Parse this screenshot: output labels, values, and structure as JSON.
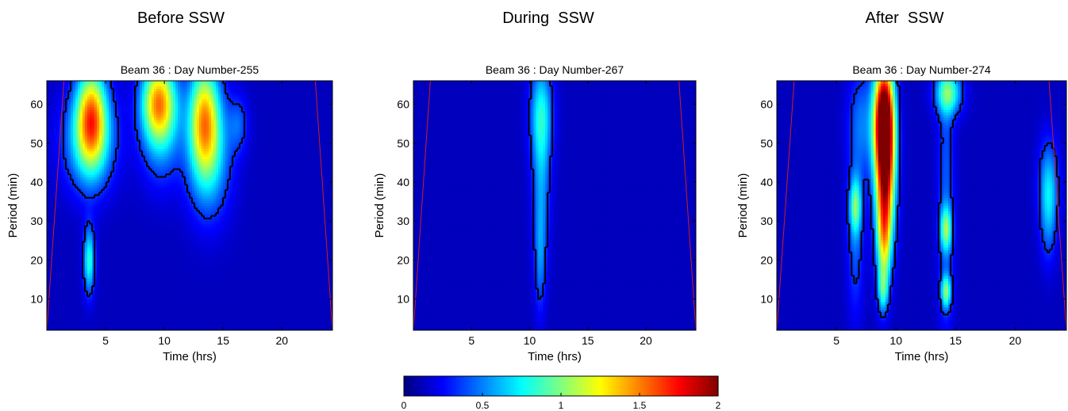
{
  "headings": [
    "Before SSW",
    "During  SSW",
    "After  SSW"
  ],
  "colorbar": {
    "ticks": [
      0,
      0.5,
      1,
      1.5,
      2
    ],
    "tick_labels": [
      "0",
      "0.5",
      "1",
      "1.5",
      "2"
    ],
    "range": [
      0,
      2
    ],
    "colormap": "jet"
  },
  "chart_data": [
    {
      "type": "heatmap",
      "title": "Beam 36 : Day Number-255",
      "xlabel": "Time (hrs)",
      "ylabel": "Period (min)",
      "xlim": [
        0,
        24.3
      ],
      "ylim": [
        2,
        66
      ],
      "xticks": [
        5,
        10,
        15,
        20
      ],
      "yticks": [
        10,
        20,
        30,
        40,
        50,
        60
      ],
      "blobs": [
        {
          "x": 3.8,
          "y": 57,
          "sx": 0.9,
          "sy": 9,
          "v": 1.15
        },
        {
          "x": 3.6,
          "y": 51,
          "sx": 1.6,
          "sy": 9,
          "v": 0.55
        },
        {
          "x": 3.6,
          "y": 20,
          "sx": 0.35,
          "sy": 6,
          "v": 0.7
        },
        {
          "x": 9.5,
          "y": 61,
          "sx": 1.0,
          "sy": 7,
          "v": 1.0
        },
        {
          "x": 9.7,
          "y": 55,
          "sx": 1.2,
          "sy": 10,
          "v": 0.5
        },
        {
          "x": 13.4,
          "y": 57,
          "sx": 0.9,
          "sy": 10,
          "v": 1.05
        },
        {
          "x": 13.8,
          "y": 47,
          "sx": 1.3,
          "sy": 11,
          "v": 0.55
        },
        {
          "x": 16.3,
          "y": 55,
          "sx": 0.6,
          "sy": 5,
          "v": 0.28
        }
      ]
    },
    {
      "type": "heatmap",
      "title": "Beam 36 : Day Number-267",
      "xlabel": "Time (hrs)",
      "ylabel": "Period (min)",
      "xlim": [
        0,
        24.3
      ],
      "ylim": [
        2,
        66
      ],
      "xticks": [
        5,
        10,
        15,
        20
      ],
      "yticks": [
        10,
        20,
        30,
        40,
        50,
        60
      ],
      "blobs": [
        {
          "x": 11.0,
          "y": 58,
          "sx": 0.7,
          "sy": 9,
          "v": 0.55
        },
        {
          "x": 11.0,
          "y": 40,
          "sx": 0.55,
          "sy": 14,
          "v": 0.38
        },
        {
          "x": 10.9,
          "y": 20,
          "sx": 0.35,
          "sy": 10,
          "v": 0.3
        }
      ]
    },
    {
      "type": "heatmap",
      "title": "Beam 36 : Day Number-274",
      "xlabel": "Time (hrs)",
      "ylabel": "Period (min)",
      "xlim": [
        0,
        24.3
      ],
      "ylim": [
        2,
        66
      ],
      "xticks": [
        5,
        10,
        15,
        20
      ],
      "yticks": [
        10,
        20,
        30,
        40,
        50,
        60
      ],
      "blobs": [
        {
          "x": 9.0,
          "y": 57,
          "sx": 0.6,
          "sy": 10,
          "v": 1.9
        },
        {
          "x": 9.1,
          "y": 42,
          "sx": 0.6,
          "sy": 12,
          "v": 1.4
        },
        {
          "x": 9.0,
          "y": 25,
          "sx": 0.45,
          "sy": 9,
          "v": 0.85
        },
        {
          "x": 8.9,
          "y": 12,
          "sx": 0.3,
          "sy": 4,
          "v": 0.5
        },
        {
          "x": 7.1,
          "y": 55,
          "sx": 0.8,
          "sy": 10,
          "v": 0.35
        },
        {
          "x": 6.6,
          "y": 34,
          "sx": 0.35,
          "sy": 5,
          "v": 0.65
        },
        {
          "x": 6.6,
          "y": 25,
          "sx": 0.5,
          "sy": 14,
          "v": 0.3
        },
        {
          "x": 14.4,
          "y": 63,
          "sx": 0.8,
          "sy": 4,
          "v": 0.75
        },
        {
          "x": 14.2,
          "y": 28,
          "sx": 0.35,
          "sy": 4,
          "v": 0.7
        },
        {
          "x": 14.2,
          "y": 12,
          "sx": 0.3,
          "sy": 3,
          "v": 0.75
        },
        {
          "x": 14.2,
          "y": 38,
          "sx": 0.5,
          "sy": 26,
          "v": 0.3
        },
        {
          "x": 22.8,
          "y": 40,
          "sx": 0.6,
          "sy": 8,
          "v": 0.45
        },
        {
          "x": 22.8,
          "y": 30,
          "sx": 0.5,
          "sy": 8,
          "v": 0.3
        }
      ]
    }
  ]
}
